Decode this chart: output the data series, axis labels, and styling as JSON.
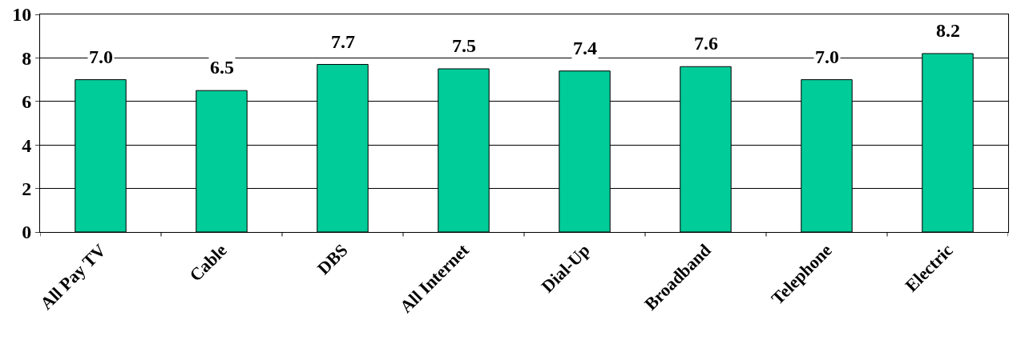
{
  "chart_data": {
    "type": "bar",
    "categories": [
      "All Pay TV",
      "Cable",
      "DBS",
      "All Internet",
      "Dial-Up",
      "Broadband",
      "Telephone",
      "Electric"
    ],
    "values": [
      7.0,
      6.5,
      7.7,
      7.5,
      7.4,
      7.6,
      7.0,
      8.2
    ],
    "color": "#00cc99",
    "value_labels": [
      "7.0",
      "6.5",
      "7.7",
      "7.5",
      "7.4",
      "7.6",
      "7.0",
      "8.2"
    ],
    "ylim": [
      0,
      10
    ],
    "yticks": [
      0,
      2,
      4,
      6,
      8,
      10
    ],
    "grid": "y",
    "legend": false
  }
}
